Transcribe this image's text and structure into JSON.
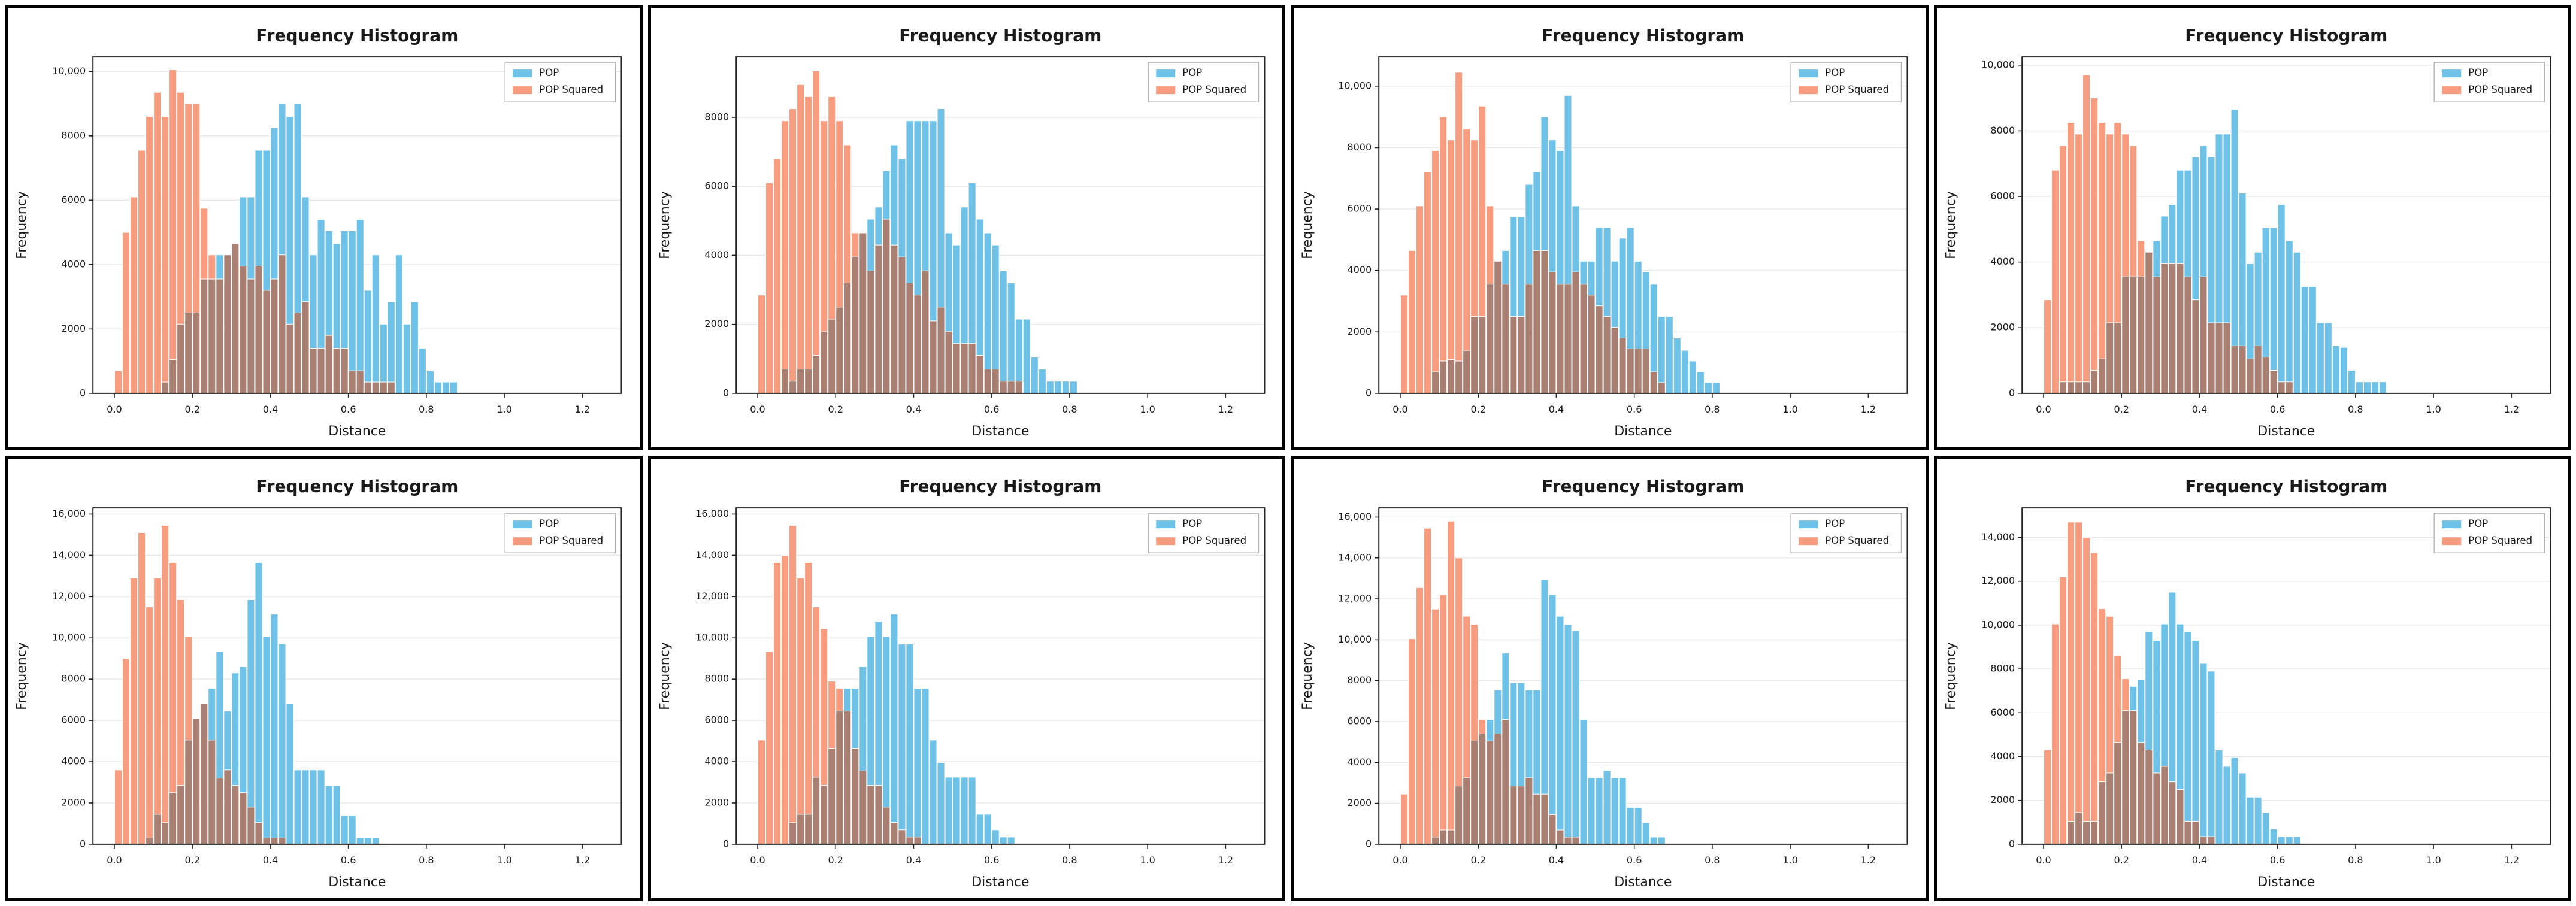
{
  "page": {
    "background": "#ffffff",
    "panel_border_color": "#000000",
    "layout": "4x2-grid-of-histograms"
  },
  "colors": {
    "pop": "#6FC2E7",
    "pop_squared": "#F79C7E",
    "overlap": "#A97F72",
    "grid": "#e8e8e8",
    "spine": "#262626",
    "text": "#1a1a1a",
    "legend_border": "#b3b3b3",
    "plot_bg": "#ffffff"
  },
  "chart_data": [
    {
      "type": "bar",
      "subtype": "overlaid-histogram",
      "title": "Frequency Histogram",
      "xlabel": "Distance",
      "ylabel": "Frequency",
      "legend": [
        "POP",
        "POP Squared"
      ],
      "legend_position": "upper-right",
      "grid": "horizontal-only",
      "bin_width": 0.02,
      "xlim": [
        -0.055,
        1.3
      ],
      "ylim": [
        0,
        10450
      ],
      "xticks": {
        "values": [
          0.0,
          0.2,
          0.4,
          0.6,
          0.8,
          1.0,
          1.2
        ],
        "labels": [
          "0.0",
          "0.2",
          "0.4",
          "0.6",
          "0.8",
          "1.0",
          "1.2"
        ]
      },
      "yticks": {
        "values": [
          0,
          2000,
          4000,
          6000,
          8000,
          10000
        ],
        "labels": [
          "0",
          "2000",
          "4000",
          "6000",
          "8000",
          "10,000"
        ]
      },
      "series": [
        {
          "name": "POP",
          "x_start": 0.12,
          "values": [
            350,
            1050,
            2150,
            2500,
            2500,
            3550,
            3550,
            4300,
            4300,
            4650,
            6100,
            6100,
            7550,
            7550,
            8250,
            9000,
            8600,
            9000,
            6100,
            4300,
            5400,
            5050,
            4650,
            5050,
            5050,
            5400,
            3200,
            4300,
            2150,
            2850,
            4300,
            2150,
            2850,
            1400,
            700,
            350,
            350,
            350
          ]
        },
        {
          "name": "POP Squared",
          "x_start": 0.0,
          "values": [
            700,
            5000,
            6100,
            7550,
            8600,
            9350,
            8600,
            10050,
            9350,
            9000,
            9000,
            5750,
            4300,
            3550,
            4300,
            4650,
            3950,
            3550,
            3950,
            3200,
            3550,
            4300,
            2150,
            2500,
            2850,
            1400,
            1400,
            1800,
            1400,
            1400,
            700,
            700,
            350,
            350,
            350,
            350
          ]
        }
      ]
    },
    {
      "type": "bar",
      "subtype": "overlaid-histogram",
      "title": "Frequency Histogram",
      "xlabel": "Distance",
      "ylabel": "Frequency",
      "legend": [
        "POP",
        "POP Squared"
      ],
      "legend_position": "upper-right",
      "grid": "horizontal-only",
      "bin_width": 0.02,
      "xlim": [
        -0.055,
        1.3
      ],
      "ylim": [
        0,
        9750
      ],
      "xticks": {
        "values": [
          0.0,
          0.2,
          0.4,
          0.6,
          0.8,
          1.0,
          1.2
        ],
        "labels": [
          "0.0",
          "0.2",
          "0.4",
          "0.6",
          "0.8",
          "1.0",
          "1.2"
        ]
      },
      "yticks": {
        "values": [
          0,
          2000,
          4000,
          6000,
          8000
        ],
        "labels": [
          "0",
          "2000",
          "4000",
          "6000",
          "8000"
        ]
      },
      "series": [
        {
          "name": "POP",
          "x_start": 0.06,
          "values": [
            700,
            350,
            700,
            700,
            1100,
            1800,
            2150,
            2500,
            3200,
            3950,
            4650,
            5050,
            5400,
            6450,
            7200,
            6800,
            7900,
            7900,
            7900,
            7900,
            8250,
            4650,
            4300,
            5400,
            6100,
            5050,
            4650,
            4300,
            3550,
            3200,
            2150,
            2150,
            1050,
            700,
            350,
            350,
            350,
            350
          ]
        },
        {
          "name": "POP Squared",
          "x_start": 0.0,
          "values": [
            2850,
            6100,
            6800,
            7900,
            8250,
            8950,
            8600,
            9350,
            7900,
            8600,
            7900,
            7200,
            4650,
            4650,
            3550,
            4300,
            5050,
            4300,
            3950,
            3200,
            2850,
            3550,
            2100,
            2500,
            1800,
            1450,
            1450,
            1450,
            1100,
            700,
            700,
            350,
            350,
            350
          ]
        }
      ]
    },
    {
      "type": "bar",
      "subtype": "overlaid-histogram",
      "title": "Frequency Histogram",
      "xlabel": "Distance",
      "ylabel": "Frequency",
      "legend": [
        "POP",
        "POP Squared"
      ],
      "legend_position": "upper-right",
      "grid": "horizontal-only",
      "bin_width": 0.02,
      "xlim": [
        -0.055,
        1.3
      ],
      "ylim": [
        0,
        10950
      ],
      "xticks": {
        "values": [
          0.0,
          0.2,
          0.4,
          0.6,
          0.8,
          1.0,
          1.2
        ],
        "labels": [
          "0.0",
          "0.2",
          "0.4",
          "0.6",
          "0.8",
          "1.0",
          "1.2"
        ]
      },
      "yticks": {
        "values": [
          0,
          2000,
          4000,
          6000,
          8000,
          10000
        ],
        "labels": [
          "0",
          "2000",
          "4000",
          "6000",
          "8000",
          "10,000"
        ]
      },
      "series": [
        {
          "name": "POP",
          "x_start": 0.08,
          "values": [
            700,
            1050,
            1100,
            1050,
            1400,
            2500,
            2500,
            3550,
            4300,
            4650,
            5750,
            5750,
            6800,
            7200,
            9000,
            8250,
            7900,
            9700,
            6100,
            4300,
            4300,
            5400,
            5400,
            4300,
            5050,
            5400,
            4300,
            3950,
            3550,
            2500,
            2500,
            1800,
            1400,
            1050,
            700,
            350,
            350
          ]
        },
        {
          "name": "POP Squared",
          "x_start": 0.0,
          "values": [
            3200,
            4650,
            6100,
            7200,
            7900,
            9000,
            8250,
            10450,
            8600,
            8250,
            9350,
            6100,
            4300,
            3550,
            2500,
            2500,
            3550,
            4650,
            4650,
            3950,
            3550,
            3550,
            3950,
            3550,
            3200,
            2850,
            2500,
            2150,
            1800,
            1450,
            1450,
            1450,
            700,
            350
          ]
        }
      ]
    },
    {
      "type": "bar",
      "subtype": "overlaid-histogram",
      "title": "Frequency Histogram",
      "xlabel": "Distance",
      "ylabel": "Frequency",
      "legend": [
        "POP",
        "POP Squared"
      ],
      "legend_position": "upper-right",
      "grid": "horizontal-only",
      "bin_width": 0.02,
      "xlim": [
        -0.055,
        1.3
      ],
      "ylim": [
        0,
        10250
      ],
      "xticks": {
        "values": [
          0.0,
          0.2,
          0.4,
          0.6,
          0.8,
          1.0,
          1.2
        ],
        "labels": [
          "0.0",
          "0.2",
          "0.4",
          "0.6",
          "0.8",
          "1.0",
          "1.2"
        ]
      },
      "yticks": {
        "values": [
          0,
          2000,
          4000,
          6000,
          8000,
          10000
        ],
        "labels": [
          "0",
          "2000",
          "4000",
          "6000",
          "8000",
          "10,000"
        ]
      },
      "series": [
        {
          "name": "POP",
          "x_start": 0.04,
          "values": [
            350,
            350,
            350,
            350,
            700,
            1050,
            2150,
            2150,
            3550,
            3550,
            3550,
            4300,
            4650,
            5400,
            5750,
            6800,
            6800,
            7200,
            7550,
            7200,
            7900,
            7900,
            8650,
            6100,
            3950,
            4300,
            5050,
            5050,
            5750,
            4650,
            4300,
            3250,
            3250,
            2150,
            2150,
            1450,
            1400,
            700,
            350,
            350,
            350,
            350
          ]
        },
        {
          "name": "POP Squared",
          "x_start": 0.0,
          "values": [
            2850,
            6800,
            7550,
            8250,
            7900,
            9700,
            9000,
            8250,
            7900,
            8250,
            7900,
            7550,
            4650,
            4300,
            3550,
            3950,
            3950,
            3950,
            3550,
            2850,
            3550,
            2150,
            2150,
            2150,
            1450,
            1450,
            1050,
            1450,
            1100,
            700,
            350,
            350
          ]
        }
      ]
    },
    {
      "type": "bar",
      "subtype": "overlaid-histogram",
      "title": "Frequency Histogram",
      "xlabel": "Distance",
      "ylabel": "Frequency",
      "legend": [
        "POP",
        "POP Squared"
      ],
      "legend_position": "upper-right",
      "grid": "horizontal-only",
      "bin_width": 0.02,
      "xlim": [
        -0.055,
        1.3
      ],
      "ylim": [
        0,
        16300
      ],
      "xticks": {
        "values": [
          0.0,
          0.2,
          0.4,
          0.6,
          0.8,
          1.0,
          1.2
        ],
        "labels": [
          "0.0",
          "0.2",
          "0.4",
          "0.6",
          "0.8",
          "1.0",
          "1.2"
        ]
      },
      "yticks": {
        "values": [
          0,
          2000,
          4000,
          6000,
          8000,
          10000,
          12000,
          14000,
          16000
        ],
        "labels": [
          "0",
          "2000",
          "4000",
          "6000",
          "8000",
          "10,000",
          "12,000",
          "14,000",
          "16,000"
        ]
      },
      "series": [
        {
          "name": "POP",
          "x_start": 0.08,
          "values": [
            300,
            1450,
            1050,
            2500,
            2850,
            5050,
            6100,
            6800,
            7550,
            9350,
            6450,
            8300,
            8600,
            11850,
            13650,
            10050,
            11150,
            9700,
            6800,
            3600,
            3600,
            3600,
            3600,
            2850,
            2850,
            1400,
            1400,
            300,
            300,
            300
          ]
        },
        {
          "name": "POP Squared",
          "x_start": 0.0,
          "values": [
            3600,
            9000,
            12900,
            15100,
            11500,
            12900,
            15450,
            13650,
            11850,
            10050,
            6100,
            6800,
            5050,
            3200,
            3600,
            2850,
            2500,
            1800,
            1050,
            300,
            300,
            300
          ]
        }
      ]
    },
    {
      "type": "bar",
      "subtype": "overlaid-histogram",
      "title": "Frequency Histogram",
      "xlabel": "Distance",
      "ylabel": "Frequency",
      "legend": [
        "POP",
        "POP Squared"
      ],
      "legend_position": "upper-right",
      "grid": "horizontal-only",
      "bin_width": 0.02,
      "xlim": [
        -0.055,
        1.3
      ],
      "ylim": [
        0,
        16300
      ],
      "xticks": {
        "values": [
          0.0,
          0.2,
          0.4,
          0.6,
          0.8,
          1.0,
          1.2
        ],
        "labels": [
          "0.0",
          "0.2",
          "0.4",
          "0.6",
          "0.8",
          "1.0",
          "1.2"
        ]
      },
      "yticks": {
        "values": [
          0,
          2000,
          4000,
          6000,
          8000,
          10000,
          12000,
          14000,
          16000
        ],
        "labels": [
          "0",
          "2000",
          "4000",
          "6000",
          "8000",
          "10,000",
          "12,000",
          "14,000",
          "16,000"
        ]
      },
      "series": [
        {
          "name": "POP",
          "x_start": 0.08,
          "values": [
            1050,
            1450,
            1450,
            3250,
            2850,
            4650,
            6450,
            7550,
            7550,
            8600,
            10050,
            10800,
            10050,
            11150,
            9700,
            9700,
            7550,
            7550,
            5050,
            3950,
            3250,
            3250,
            3250,
            3250,
            1450,
            1450,
            700,
            350,
            350
          ]
        },
        {
          "name": "POP Squared",
          "x_start": 0.0,
          "values": [
            5050,
            9350,
            13650,
            14000,
            15450,
            12900,
            13650,
            11500,
            10450,
            7900,
            7550,
            6450,
            4650,
            3550,
            2850,
            2850,
            1800,
            1050,
            700,
            350,
            350
          ]
        }
      ]
    },
    {
      "type": "bar",
      "subtype": "overlaid-histogram",
      "title": "Frequency Histogram",
      "xlabel": "Distance",
      "ylabel": "Frequency",
      "legend": [
        "POP",
        "POP Squared"
      ],
      "legend_position": "upper-right",
      "grid": "horizontal-only",
      "bin_width": 0.02,
      "xlim": [
        -0.055,
        1.3
      ],
      "ylim": [
        0,
        16450
      ],
      "xticks": {
        "values": [
          0.0,
          0.2,
          0.4,
          0.6,
          0.8,
          1.0,
          1.2
        ],
        "labels": [
          "0.0",
          "0.2",
          "0.4",
          "0.6",
          "0.8",
          "1.0",
          "1.2"
        ]
      },
      "yticks": {
        "values": [
          0,
          2000,
          4000,
          6000,
          8000,
          10000,
          12000,
          14000,
          16000
        ],
        "labels": [
          "0",
          "2000",
          "4000",
          "6000",
          "8000",
          "10,000",
          "12,000",
          "14,000",
          "16,000"
        ]
      },
      "series": [
        {
          "name": "POP",
          "x_start": 0.08,
          "values": [
            350,
            700,
            700,
            2850,
            3250,
            5050,
            5400,
            6100,
            7550,
            9350,
            7900,
            7900,
            7550,
            7550,
            12950,
            12200,
            11150,
            10750,
            10450,
            6100,
            3250,
            3250,
            3600,
            3250,
            3250,
            1800,
            1800,
            1050,
            350,
            350
          ]
        },
        {
          "name": "POP Squared",
          "x_start": 0.0,
          "values": [
            2450,
            10050,
            12550,
            15450,
            11500,
            12200,
            15800,
            14000,
            11150,
            10750,
            6100,
            5050,
            5400,
            6100,
            2850,
            2850,
            3250,
            2450,
            2450,
            1450,
            700,
            350,
            350
          ]
        }
      ]
    },
    {
      "type": "bar",
      "subtype": "overlaid-histogram",
      "title": "Frequency Histogram",
      "xlabel": "Distance",
      "ylabel": "Frequency",
      "legend": [
        "POP",
        "POP Squared"
      ],
      "legend_position": "upper-right",
      "grid": "horizontal-only",
      "bin_width": 0.02,
      "xlim": [
        -0.055,
        1.3
      ],
      "ylim": [
        0,
        15350
      ],
      "xticks": {
        "values": [
          0.0,
          0.2,
          0.4,
          0.6,
          0.8,
          1.0,
          1.2
        ],
        "labels": [
          "0.0",
          "0.2",
          "0.4",
          "0.6",
          "0.8",
          "1.0",
          "1.2"
        ]
      },
      "yticks": {
        "values": [
          0,
          2000,
          4000,
          6000,
          8000,
          10000,
          12000,
          14000
        ],
        "labels": [
          "0",
          "2000",
          "4000",
          "6000",
          "8000",
          "10,000",
          "12,000",
          "14,000"
        ]
      },
      "series": [
        {
          "name": "POP",
          "x_start": 0.06,
          "values": [
            1050,
            1450,
            1050,
            1050,
            2850,
            3250,
            4650,
            6100,
            7200,
            7500,
            9700,
            9300,
            10050,
            11500,
            10050,
            9700,
            9300,
            8250,
            7900,
            4300,
            3550,
            3950,
            3250,
            2150,
            2150,
            1450,
            700,
            350,
            350,
            350
          ]
        },
        {
          "name": "POP Squared",
          "x_start": 0.0,
          "values": [
            4300,
            10050,
            12200,
            14700,
            14700,
            14000,
            13300,
            10750,
            10400,
            8600,
            7550,
            6100,
            4650,
            4300,
            3250,
            3550,
            2850,
            2500,
            1050,
            1050,
            350,
            350
          ]
        }
      ]
    }
  ]
}
